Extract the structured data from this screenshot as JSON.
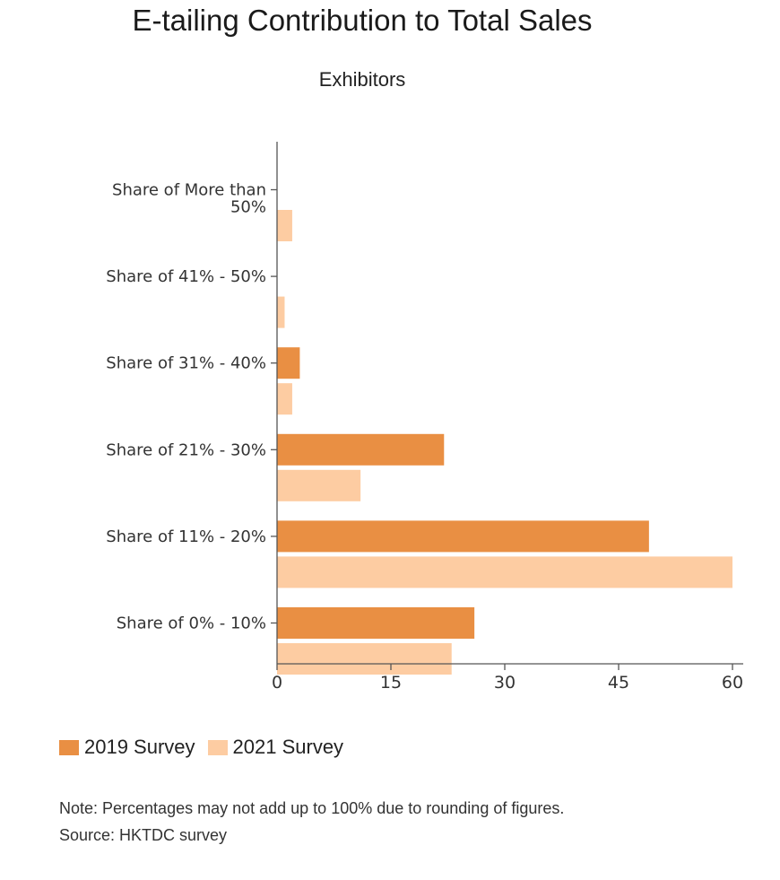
{
  "title": "E-tailing Contribution to Total Sales",
  "subtitle": "Exhibitors",
  "chart_data": {
    "type": "bar",
    "orientation": "horizontal",
    "categories": [
      "Share of More than 50%",
      "Share of 41% - 50%",
      "Share of 31% - 40%",
      "Share of 21% - 30%",
      "Share of 11% - 20%",
      "Share of 0% - 10%"
    ],
    "category_lines": [
      [
        "Share of More than",
        "50%"
      ],
      [
        "Share of 41% - 50%"
      ],
      [
        "Share of 31% - 40%"
      ],
      [
        "Share of 21% - 30%"
      ],
      [
        "Share of 11% - 20%"
      ],
      [
        "Share of 0% - 10%"
      ]
    ],
    "series": [
      {
        "name": "2019 Survey",
        "color": "#e98f43",
        "values": [
          0,
          0,
          3,
          22,
          49,
          26
        ]
      },
      {
        "name": "2021 Survey",
        "color": "#fdcca2",
        "values": [
          2,
          1,
          2,
          11,
          60,
          23
        ]
      }
    ],
    "xlim": [
      0,
      60
    ],
    "xticks": [
      0,
      15,
      30,
      45,
      60
    ],
    "grid": false,
    "legend_position": "bottom-left"
  },
  "legend": [
    {
      "label": "2019 Survey",
      "color": "#e98f43"
    },
    {
      "label": "2021 Survey",
      "color": "#fdcca2"
    }
  ],
  "note": "Note: Percentages may not add up to 100% due to rounding of figures.",
  "source": "Source: HKTDC survey"
}
